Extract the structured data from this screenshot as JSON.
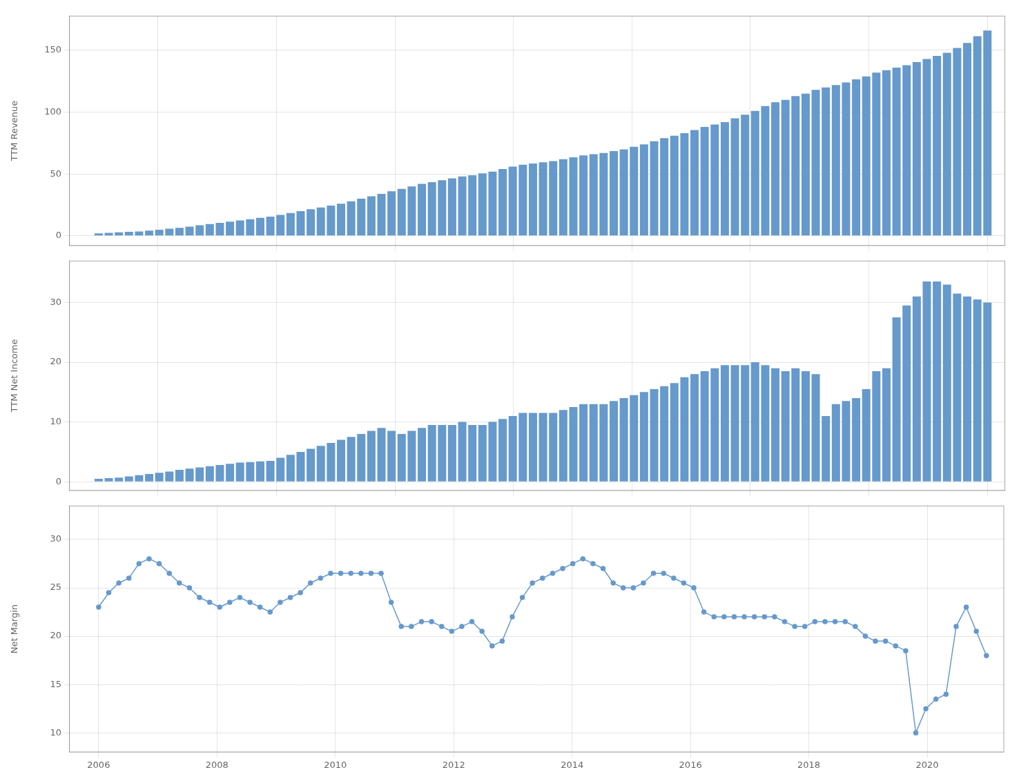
{
  "chart_data": [
    {
      "type": "bar",
      "y_label": "TTM Revenue",
      "color": "#6699cc",
      "x": [
        2006,
        2006.1705,
        2006.3409,
        2006.5114,
        2006.6818,
        2006.8523,
        2007.0227,
        2007.1932,
        2007.3636,
        2007.5341,
        2007.7045,
        2007.875,
        2008.0455,
        2008.2159,
        2008.3864,
        2008.5568,
        2008.7273,
        2008.8977,
        2009.0682,
        2009.2386,
        2009.4091,
        2009.5795,
        2009.75,
        2009.9205,
        2010.0909,
        2010.2614,
        2010.4318,
        2010.6023,
        2010.7727,
        2010.9432,
        2011.1136,
        2011.2841,
        2011.4545,
        2011.625,
        2011.7955,
        2011.9659,
        2012.1364,
        2012.3068,
        2012.4773,
        2012.6477,
        2012.8182,
        2012.9886,
        2013.1591,
        2013.3295,
        2013.5,
        2013.6705,
        2013.8409,
        2014.0114,
        2014.1818,
        2014.3523,
        2014.5227,
        2014.6932,
        2014.8636,
        2015.0341,
        2015.2045,
        2015.375,
        2015.5455,
        2015.7159,
        2015.8864,
        2016.0568,
        2016.2273,
        2016.3977,
        2016.5682,
        2016.7386,
        2016.9091,
        2017.0795,
        2017.25,
        2017.4205,
        2017.5909,
        2017.7614,
        2017.9318,
        2018.1023,
        2018.2727,
        2018.4432,
        2018.6136,
        2018.7841,
        2018.9545,
        2019.125,
        2019.2955,
        2019.4659,
        2019.6364,
        2019.8068,
        2019.9773,
        2020.1477,
        2020.3182,
        2020.4886,
        2020.6591,
        2020.8295,
        2021
      ],
      "values": [
        2.0,
        2.4,
        2.8,
        3.2,
        3.6,
        4.2,
        5.0,
        5.8,
        6.5,
        7.5,
        8.5,
        9.5,
        10.5,
        11.5,
        12.5,
        13.5,
        14.5,
        15.5,
        17.0,
        18.5,
        20.0,
        21.5,
        23.0,
        24.5,
        26.0,
        28.0,
        30.0,
        32.0,
        34.0,
        36.0,
        38.0,
        40.0,
        42.0,
        43.5,
        45.0,
        46.5,
        48.0,
        49.0,
        50.5,
        52.0,
        54.0,
        56.0,
        57.5,
        58.5,
        59.5,
        60.5,
        62.0,
        63.5,
        65.0,
        66.0,
        67.0,
        68.5,
        70.0,
        72.0,
        74.0,
        76.5,
        79.0,
        81.0,
        83.0,
        85.5,
        88.0,
        90.0,
        92.0,
        95.0,
        98.0,
        101.0,
        105.0,
        108.0,
        110.0,
        113.0,
        115.0,
        118.0,
        120.0,
        122.0,
        124.0,
        126.5,
        129.0,
        132.0,
        134.0,
        136.0,
        138.0,
        140.5,
        143.0,
        145.5,
        148.0,
        152.0,
        156.0,
        161.5,
        166.0
      ],
      "xlim": [
        2005.5,
        2021.3
      ],
      "xticks": [
        2006,
        2008,
        2010,
        2012,
        2014,
        2016,
        2018,
        2020
      ],
      "ylim": [
        -8,
        178
      ],
      "yticks": [
        0,
        50,
        100,
        150
      ],
      "grid": true,
      "tick_labels": "y"
    },
    {
      "type": "bar",
      "y_label": "TTM Net Income",
      "color": "#6699cc",
      "x": [
        2006,
        2006.1705,
        2006.3409,
        2006.5114,
        2006.6818,
        2006.8523,
        2007.0227,
        2007.1932,
        2007.3636,
        2007.5341,
        2007.7045,
        2007.875,
        2008.0455,
        2008.2159,
        2008.3864,
        2008.5568,
        2008.7273,
        2008.8977,
        2009.0682,
        2009.2386,
        2009.4091,
        2009.5795,
        2009.75,
        2009.9205,
        2010.0909,
        2010.2614,
        2010.4318,
        2010.6023,
        2010.7727,
        2010.9432,
        2011.1136,
        2011.2841,
        2011.4545,
        2011.625,
        2011.7955,
        2011.9659,
        2012.1364,
        2012.3068,
        2012.4773,
        2012.6477,
        2012.8182,
        2012.9886,
        2013.1591,
        2013.3295,
        2013.5,
        2013.6705,
        2013.8409,
        2014.0114,
        2014.1818,
        2014.3523,
        2014.5227,
        2014.6932,
        2014.8636,
        2015.0341,
        2015.2045,
        2015.375,
        2015.5455,
        2015.7159,
        2015.8864,
        2016.0568,
        2016.2273,
        2016.3977,
        2016.5682,
        2016.7386,
        2016.9091,
        2017.0795,
        2017.25,
        2017.4205,
        2017.5909,
        2017.7614,
        2017.9318,
        2018.1023,
        2018.2727,
        2018.4432,
        2018.6136,
        2018.7841,
        2018.9545,
        2019.125,
        2019.2955,
        2019.4659,
        2019.6364,
        2019.8068,
        2019.9773,
        2020.1477,
        2020.3182,
        2020.4886,
        2020.6591,
        2020.8295,
        2021
      ],
      "values": [
        0.5,
        0.6,
        0.7,
        0.9,
        1.1,
        1.3,
        1.5,
        1.7,
        2.0,
        2.2,
        2.4,
        2.6,
        2.8,
        3.0,
        3.2,
        3.3,
        3.4,
        3.5,
        4.0,
        4.5,
        5.0,
        5.5,
        6.0,
        6.5,
        7.0,
        7.5,
        8.0,
        8.5,
        9.0,
        8.5,
        8.0,
        8.5,
        9.0,
        9.5,
        9.5,
        9.5,
        10.0,
        9.5,
        9.5,
        10.0,
        10.5,
        11.0,
        11.5,
        11.5,
        11.5,
        11.5,
        12.0,
        12.5,
        13.0,
        13.0,
        13.0,
        13.5,
        14.0,
        14.5,
        15.0,
        15.5,
        16.0,
        16.5,
        17.5,
        18.0,
        18.5,
        19.0,
        19.5,
        19.5,
        19.5,
        20.0,
        19.5,
        19.0,
        18.5,
        19.0,
        18.5,
        18.0,
        11.0,
        13.0,
        13.5,
        14.0,
        15.5,
        18.5,
        19.0,
        27.5,
        29.5,
        31.0,
        33.5,
        33.5,
        33.0,
        31.5,
        31.0,
        30.5,
        30.0
      ],
      "xlim": [
        2005.5,
        2021.3
      ],
      "xticks": [
        2006,
        2008,
        2010,
        2012,
        2014,
        2016,
        2018,
        2020
      ],
      "ylim": [
        -1.5,
        37
      ],
      "yticks": [
        0,
        10,
        20,
        30
      ],
      "grid": true,
      "tick_labels": "y"
    },
    {
      "type": "line",
      "y_label": "Net Margin",
      "color": "#6699cc",
      "marker": "circle",
      "x": [
        2006,
        2006.1705,
        2006.3409,
        2006.5114,
        2006.6818,
        2006.8523,
        2007.0227,
        2007.1932,
        2007.3636,
        2007.5341,
        2007.7045,
        2007.875,
        2008.0455,
        2008.2159,
        2008.3864,
        2008.5568,
        2008.7273,
        2008.8977,
        2009.0682,
        2009.2386,
        2009.4091,
        2009.5795,
        2009.75,
        2009.9205,
        2010.0909,
        2010.2614,
        2010.4318,
        2010.6023,
        2010.7727,
        2010.9432,
        2011.1136,
        2011.2841,
        2011.4545,
        2011.625,
        2011.7955,
        2011.9659,
        2012.1364,
        2012.3068,
        2012.4773,
        2012.6477,
        2012.8182,
        2012.9886,
        2013.1591,
        2013.3295,
        2013.5,
        2013.6705,
        2013.8409,
        2014.0114,
        2014.1818,
        2014.3523,
        2014.5227,
        2014.6932,
        2014.8636,
        2015.0341,
        2015.2045,
        2015.375,
        2015.5455,
        2015.7159,
        2015.8864,
        2016.0568,
        2016.2273,
        2016.3977,
        2016.5682,
        2016.7386,
        2016.9091,
        2017.0795,
        2017.25,
        2017.4205,
        2017.5909,
        2017.7614,
        2017.9318,
        2018.1023,
        2018.2727,
        2018.4432,
        2018.6136,
        2018.7841,
        2018.9545,
        2019.125,
        2019.2955,
        2019.4659,
        2019.6364,
        2019.8068,
        2019.9773,
        2020.1477,
        2020.3182,
        2020.4886,
        2020.6591,
        2020.8295,
        2021
      ],
      "values": [
        23.0,
        24.5,
        25.5,
        26.0,
        27.5,
        28.0,
        27.5,
        26.5,
        25.5,
        25.0,
        24.0,
        23.5,
        23.0,
        23.5,
        24.0,
        23.5,
        23.0,
        22.5,
        23.5,
        24.0,
        24.5,
        25.5,
        26.0,
        26.5,
        26.5,
        26.5,
        26.5,
        26.5,
        26.5,
        23.5,
        21.0,
        21.0,
        21.5,
        21.5,
        21.0,
        20.5,
        21.0,
        21.5,
        20.5,
        19.0,
        19.5,
        22.0,
        24.0,
        25.5,
        26.0,
        26.5,
        27.0,
        27.5,
        28.0,
        27.5,
        27.0,
        25.5,
        25.0,
        25.0,
        25.5,
        26.5,
        26.5,
        26.0,
        25.5,
        25.0,
        22.5,
        22.0,
        22.0,
        22.0,
        22.0,
        22.0,
        22.0,
        22.0,
        21.5,
        21.0,
        21.0,
        21.5,
        21.5,
        21.5,
        21.5,
        21.0,
        20.0,
        19.5,
        19.5,
        19.0,
        18.5,
        10.0,
        12.5,
        13.5,
        14.0,
        21.0,
        23.0,
        20.5,
        18.0
      ],
      "xlim": [
        2005.5,
        2021.3
      ],
      "xticks": [
        2006,
        2008,
        2010,
        2012,
        2014,
        2016,
        2018,
        2020
      ],
      "ylim": [
        8.0,
        33.5
      ],
      "yticks": [
        10,
        15,
        20,
        25,
        30
      ],
      "grid": true
    }
  ]
}
